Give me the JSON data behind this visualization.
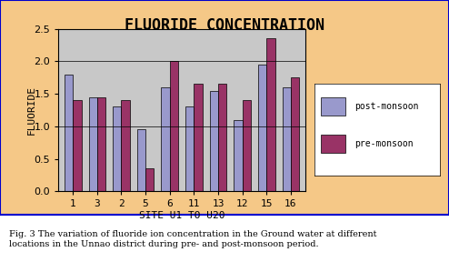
{
  "title": "FLUORIDE CONCENTRATION",
  "xlabel": "SITE U1 TO U20",
  "ylabel": "FLUORIDE",
  "categories": [
    "1",
    "3",
    "2",
    "5",
    "6",
    "11",
    "13",
    "12",
    "15",
    "16"
  ],
  "post_monsoon": [
    1.8,
    1.45,
    1.3,
    0.95,
    1.6,
    1.3,
    1.55,
    1.1,
    1.95,
    1.6
  ],
  "pre_monsoon": [
    1.4,
    1.45,
    1.4,
    0.35,
    2.0,
    1.65,
    1.65,
    1.4,
    2.35,
    1.75
  ],
  "post_color": "#9999cc",
  "pre_color": "#993366",
  "ylim": [
    0,
    2.5
  ],
  "yticks": [
    0,
    0.5,
    1,
    1.5,
    2,
    2.5
  ],
  "bg_outer": "#f5c887",
  "bg_plot": "#c8c8c8",
  "legend_post": "post-monsoon",
  "legend_pre": "pre-monsoon",
  "border_color": "#0000cc",
  "caption": "Fig. 3 The variation of fluoride ion concentration in the Ground water at different\nlocations in the Unnao district during pre- and post-monsoon period.",
  "title_fontsize": 12,
  "axis_fontsize": 8,
  "tick_fontsize": 8
}
